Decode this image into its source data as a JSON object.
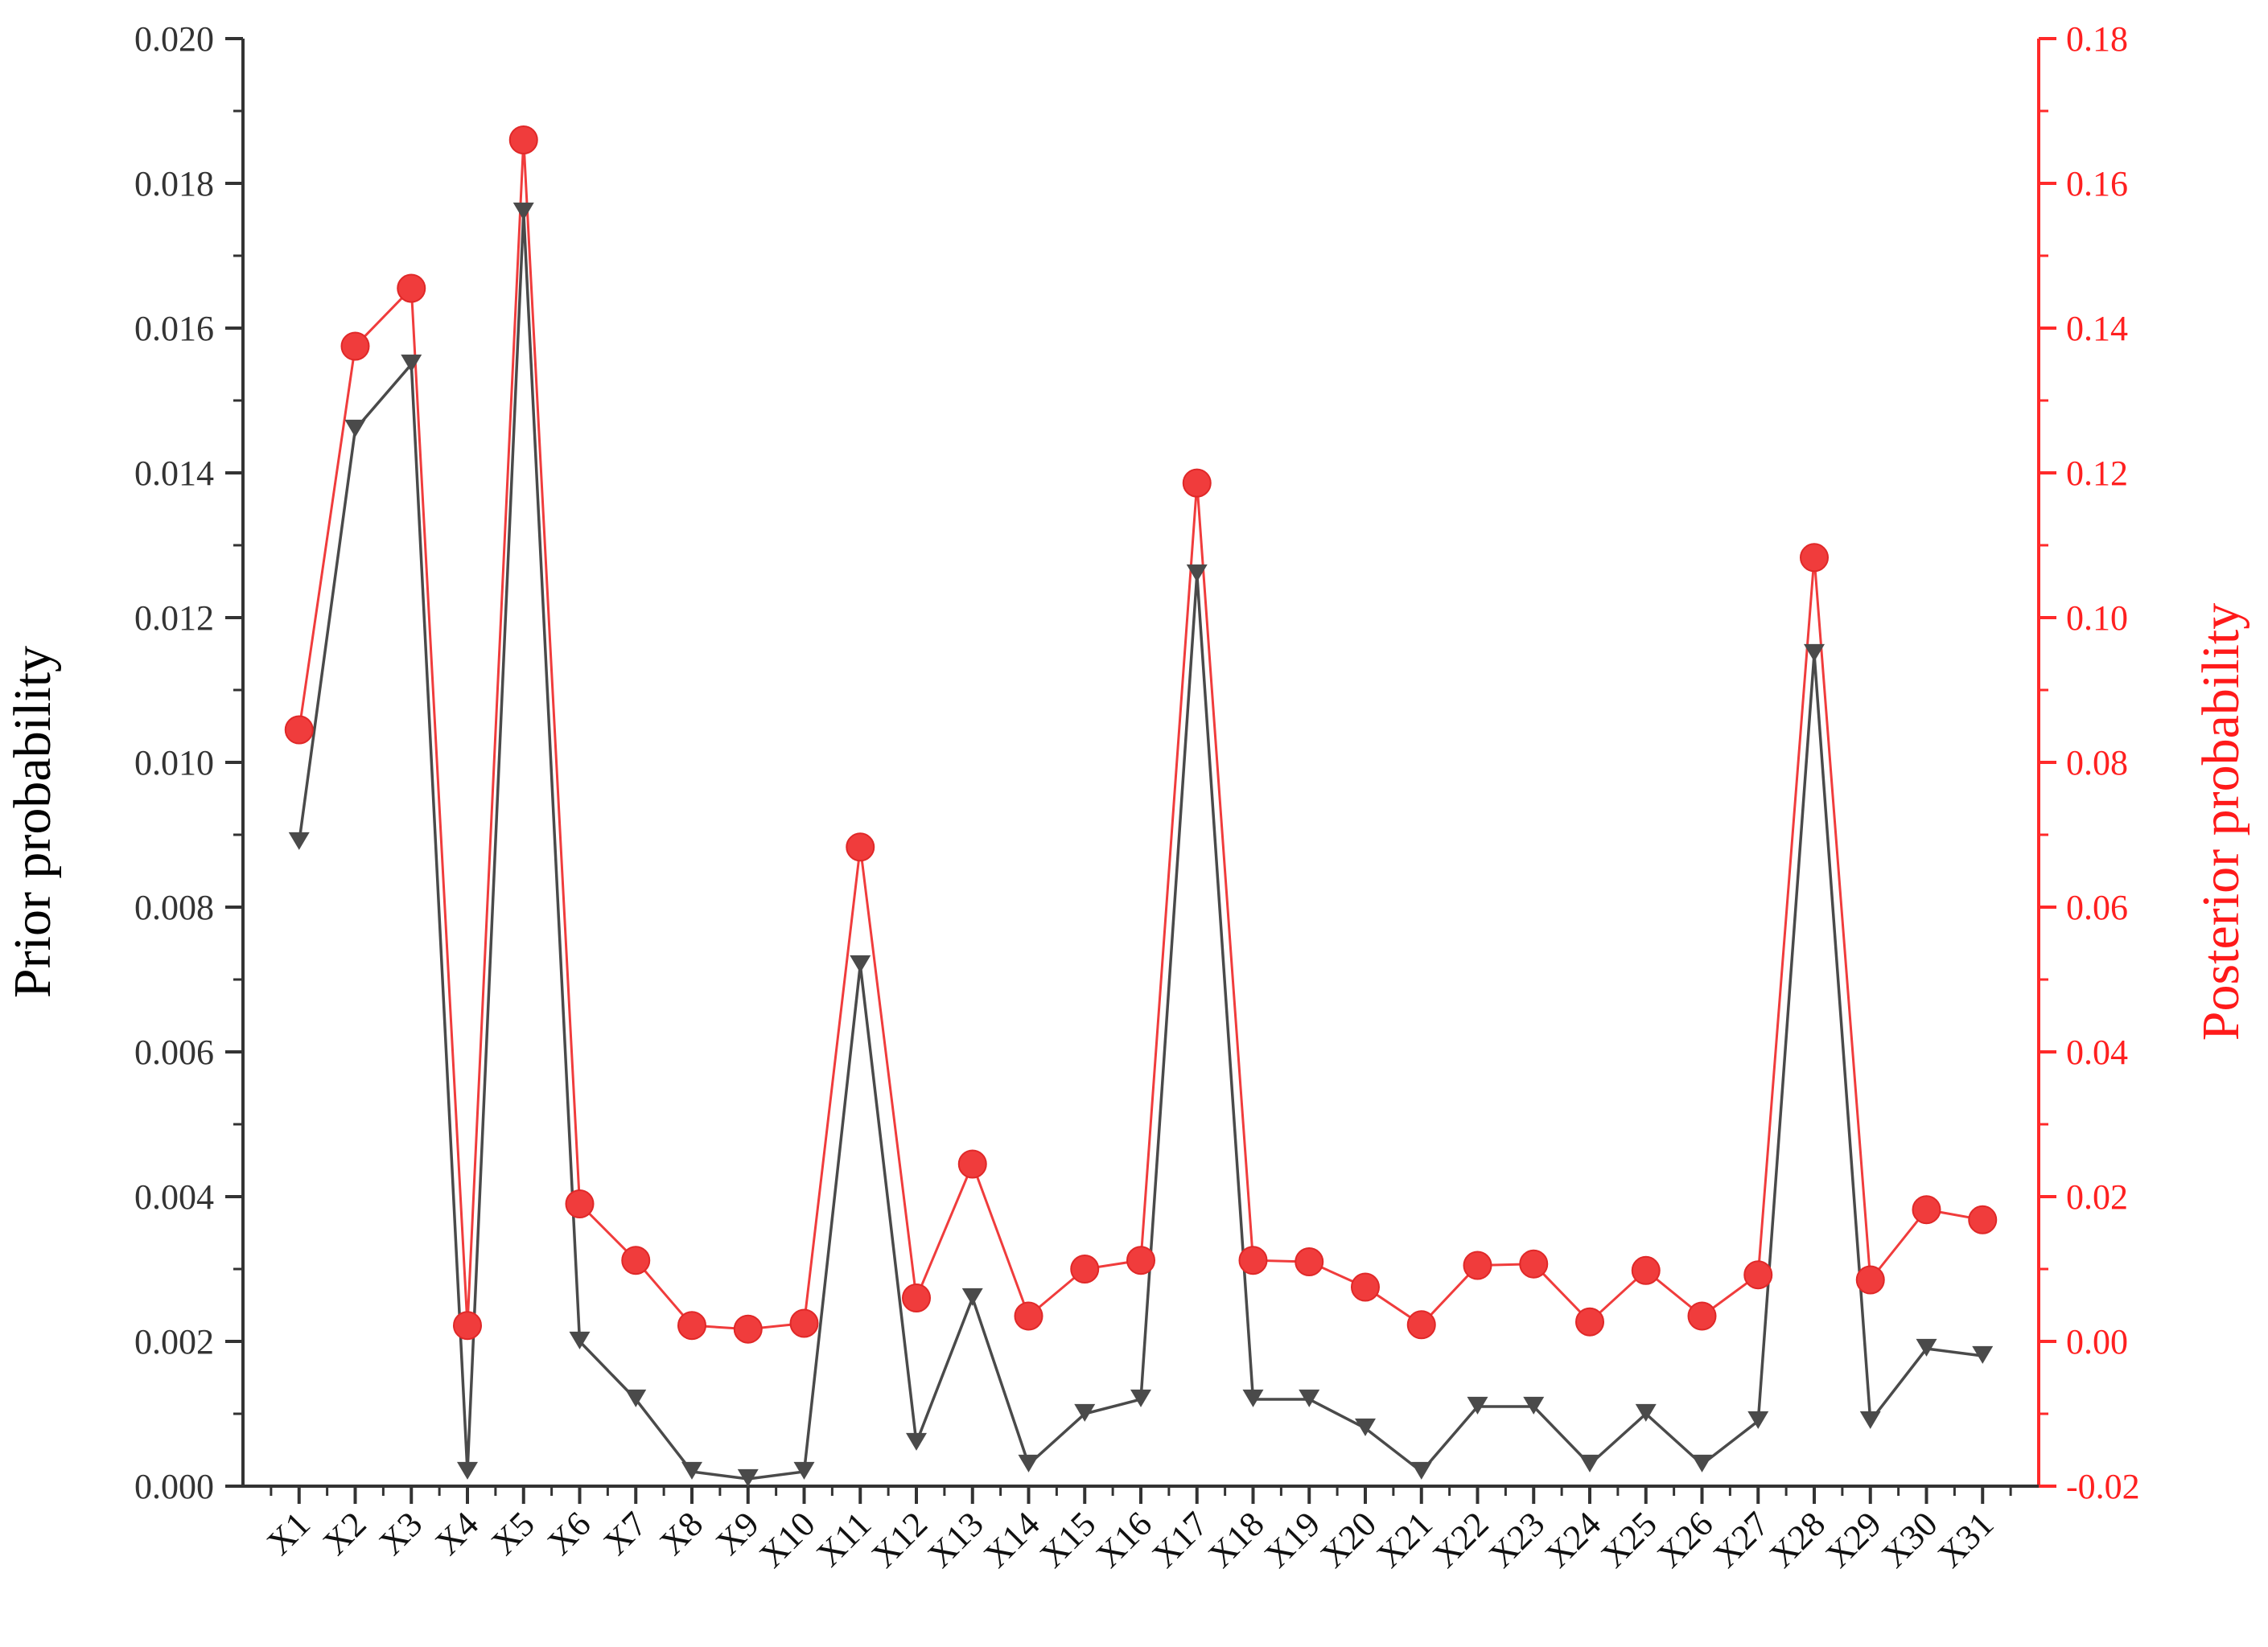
{
  "chart_data": {
    "type": "line",
    "categories": [
      "X1",
      "X2",
      "X3",
      "X4",
      "X5",
      "X6",
      "X7",
      "X8",
      "X9",
      "X10",
      "X11",
      "X12",
      "X13",
      "X14",
      "X15",
      "X16",
      "X17",
      "X18",
      "X19",
      "X20",
      "X21",
      "X22",
      "X23",
      "X24",
      "X25",
      "X26",
      "X27",
      "X28",
      "X29",
      "X30",
      "X31"
    ],
    "ylabel": "Prior probability",
    "y2label": "Posterior probability",
    "ylim": [
      0,
      0.02
    ],
    "y2lim": [
      -0.02,
      0.18
    ],
    "yticks": [
      "0.000",
      "0.002",
      "0.004",
      "0.006",
      "0.008",
      "0.010",
      "0.012",
      "0.014",
      "0.016",
      "0.018",
      "0.020"
    ],
    "y2ticks": [
      "-0.02",
      "0.00",
      "0.02",
      "0.04",
      "0.06",
      "0.08",
      "0.10",
      "0.12",
      "0.14",
      "0.16",
      "0.18"
    ],
    "grid": false,
    "series": [
      {
        "axis": "left",
        "color": "#4a4a4a",
        "marker": "triangle-down",
        "values": [
          0.0089,
          0.0146,
          0.0155,
          0.0002,
          0.0176,
          0.002,
          0.0012,
          0.0002,
          0.0001,
          0.0002,
          0.0072,
          0.0006,
          0.0026,
          0.0003,
          0.001,
          0.0012,
          0.0126,
          0.0012,
          0.0012,
          0.0008,
          0.0002,
          0.0011,
          0.0011,
          0.0003,
          0.001,
          0.0003,
          0.0009,
          0.0115,
          0.0009,
          0.0019,
          0.0018
        ]
      },
      {
        "axis": "right",
        "color": "#f03c3c",
        "marker": "circle",
        "values": [
          0.0845,
          0.1375,
          0.1455,
          0.0022,
          0.166,
          0.019,
          0.0112,
          0.0022,
          0.0017,
          0.0025,
          0.0683,
          0.006,
          0.0245,
          0.0035,
          0.01,
          0.0112,
          0.1186,
          0.0112,
          0.011,
          0.0075,
          0.0023,
          0.0105,
          0.0107,
          0.0027,
          0.0098,
          0.0035,
          0.0092,
          0.1083,
          0.0085,
          0.0182,
          0.0168
        ]
      }
    ]
  }
}
